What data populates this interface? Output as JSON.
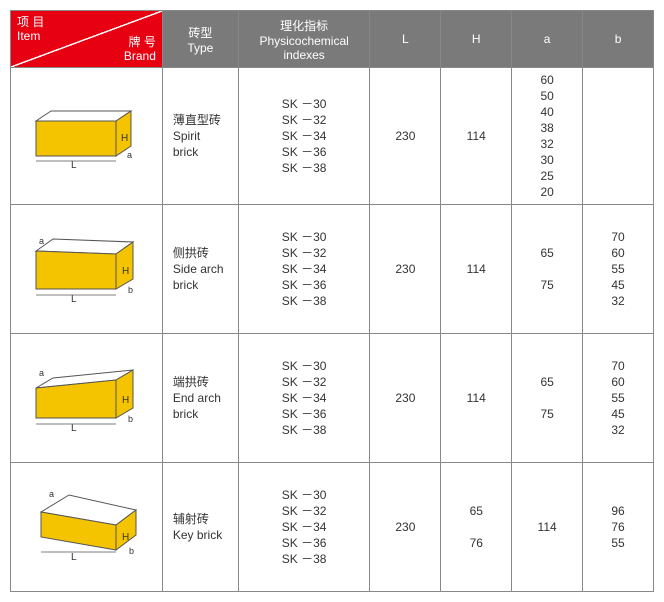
{
  "header": {
    "item_cn": "项 目",
    "item_en": "Item",
    "brand_cn": "牌 号",
    "brand_en": "Brand",
    "type_cn": "砖型",
    "type_en": "Type",
    "phys_cn": "理化指标",
    "phys_en": "Physicochemical indexes",
    "L": "L",
    "H": "H",
    "a": "a",
    "b": "b"
  },
  "colors": {
    "header_red": "#e60012",
    "header_gray": "#7a7a7a",
    "brick_face": "#f5c400",
    "brick_top": "#ffffff",
    "brick_stroke": "#555555"
  },
  "indexes_join": "SK －30\nSK －32\nSK －34\nSK －36\nSK －38",
  "rows": [
    {
      "type_cn": "薄直型砖",
      "type_en1": "Spirit",
      "type_en2": "brick",
      "L": "230",
      "H": "114",
      "a": "60\n50\n40\n38\n32\n30\n25\n20",
      "b": ""
    },
    {
      "type_cn": "侧拱砖",
      "type_en1": "Side arch",
      "type_en2": "brick",
      "L": "230",
      "H": "114",
      "a": "65\n\n75",
      "b": "70\n60\n55\n45\n32"
    },
    {
      "type_cn": "端拱砖",
      "type_en1": "End arch",
      "type_en2": "brick",
      "L": "230",
      "H": "114",
      "a": "65\n\n75",
      "b": "70\n60\n55\n45\n32"
    },
    {
      "type_cn": "辅射砖",
      "type_en1": "Key brick",
      "type_en2": "",
      "L": "230",
      "H": "65\n\n76",
      "a": "114",
      "b": "96\n76\n55"
    }
  ]
}
